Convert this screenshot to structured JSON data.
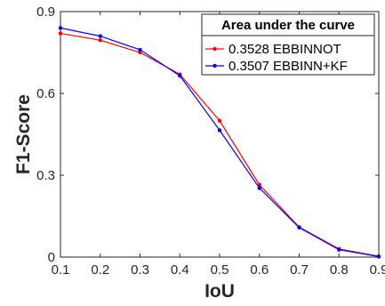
{
  "chart_data": {
    "type": "line",
    "xlabel": "IoU",
    "ylabel": "F1-Score",
    "xlim": [
      0.1,
      0.9
    ],
    "ylim": [
      0,
      0.9
    ],
    "x_ticks": [
      "0.1",
      "0.2",
      "0.3",
      "0.4",
      "0.5",
      "0.6",
      "0.7",
      "0.8",
      "0.9"
    ],
    "y_ticks": [
      "0",
      "0.3",
      "0.6",
      "0.9"
    ],
    "x": [
      0.1,
      0.2,
      0.3,
      0.4,
      0.5,
      0.6,
      0.7,
      0.8,
      0.9
    ],
    "grid": false,
    "legend": {
      "title": "Area under the curve",
      "position": "top-right",
      "entries": [
        "0.3528 EBBINNOT",
        "0.3507 EBBINN+KF"
      ]
    },
    "series": [
      {
        "name": "0.3528 EBBINNOT",
        "color": "#ff0000",
        "values": [
          0.82,
          0.795,
          0.75,
          0.67,
          0.5,
          0.265,
          0.11,
          0.03,
          0.003
        ]
      },
      {
        "name": "0.3507 EBBINN+KF",
        "color": "#0000ff",
        "values": [
          0.84,
          0.81,
          0.76,
          0.665,
          0.465,
          0.253,
          0.108,
          0.027,
          0.002
        ]
      }
    ]
  }
}
